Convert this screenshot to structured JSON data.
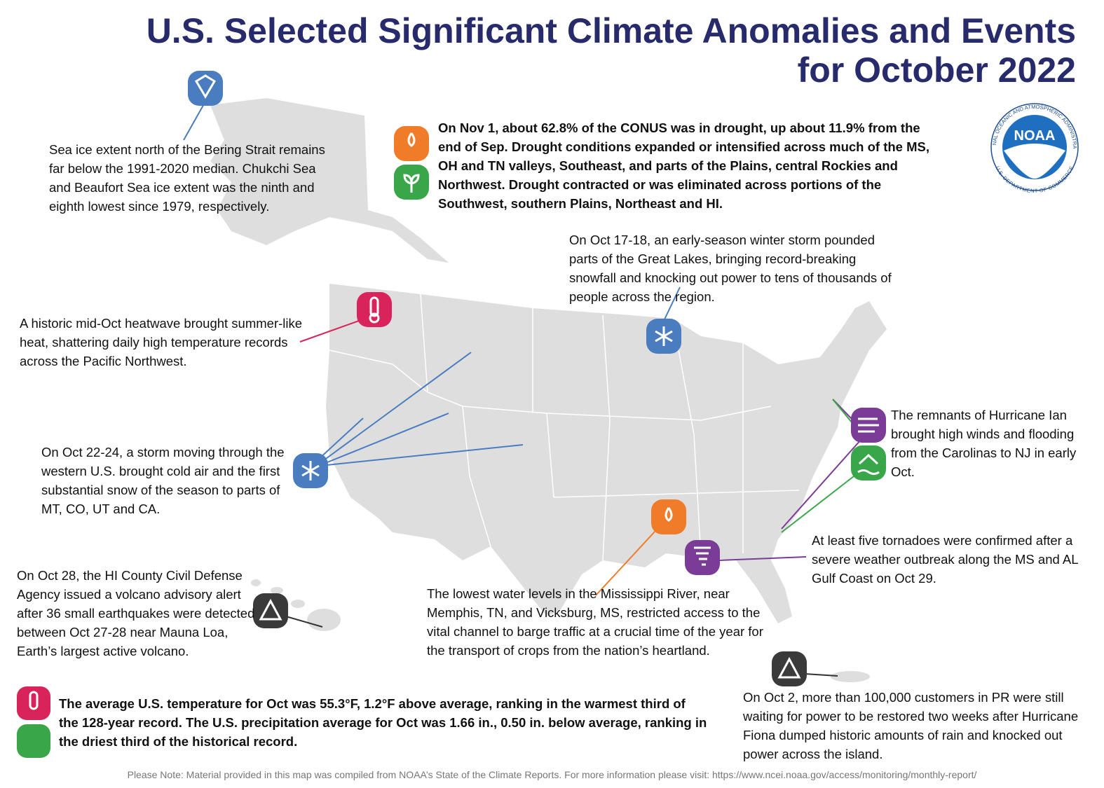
{
  "header": {
    "title_line1": "U.S. Selected Significant Climate Anomalies and Events",
    "title_line2": "for October 2022"
  },
  "logo": {
    "acronym": "NOAA",
    "agency": "NATIONAL OCEANIC AND ATMOSPHERIC ADMINISTRATION",
    "department": "U.S. DEPARTMENT OF COMMERCE"
  },
  "annotations": {
    "sea_ice": "Sea ice extent north of the Bering Strait remains far below the 1991-2020 median. Chukchi Sea and Beaufort Sea ice extent was the ninth and eighth lowest since 1979, respectively.",
    "drought": "On Nov 1, about 62.8% of the CONUS was in drought, up about 11.9% from the end of Sep. Drought conditions expanded or intensified across much of the MS, OH and TN valleys, Southeast, and parts of the Plains, central Rockies and Northwest. Drought contracted or was eliminated across portions of the Southwest, southern Plains, Northeast and HI.",
    "great_lakes_storm": "On Oct 17-18, an early-season winter storm pounded parts of the Great Lakes, bringing record-breaking snowfall and knocking out power to tens of thousands of people across the region.",
    "heatwave": "A historic mid-Oct heatwave brought summer-like heat, shattering daily high temperature records across the Pacific Northwest.",
    "western_storm": "On Oct 22-24, a storm moving through the western U.S. brought cold air and the first substantial snow of the season to parts of MT, CO, UT and CA.",
    "hurricane_ian": "The remnants of Hurricane Ian brought high winds and flooding from the Carolinas to NJ in early Oct.",
    "tornadoes": "At least five tornadoes were confirmed after a severe weather outbreak along the MS and AL Gulf Coast on Oct 29.",
    "mississippi": "The lowest water levels in the Mississippi River, near Memphis, TN, and Vicksburg, MS, restricted access to the vital channel to barge traffic at a crucial time of the year for the transport of crops from the nation’s heartland.",
    "hawaii_volcano": "On Oct 28, the HI County Civil Defense Agency issued a volcano advisory alert after 36 small earthquakes were detected between Oct 27-28 near Mauna Loa, Earth’s largest active volcano.",
    "puerto_rico": "On Oct 2, more than 100,000 customers in PR were still waiting for power to be restored two weeks after Hurricane Fiona dumped historic amounts of rain and knocked out power across the island."
  },
  "summary": "The average U.S. temperature for Oct was 55.3°F, 1.2°F above average, ranking in the warmest third of the 128-year record. The U.S. precipitation average for Oct was 1.66 in., 0.50 in. below average, ranking in the driest third of the historical record.",
  "footer": "Please Note: Material provided in this map was compiled from NOAA’s State of the Climate Reports. For more information please visit: https://www.ncei.noaa.gov/access/monitoring/monthly-report/"
}
